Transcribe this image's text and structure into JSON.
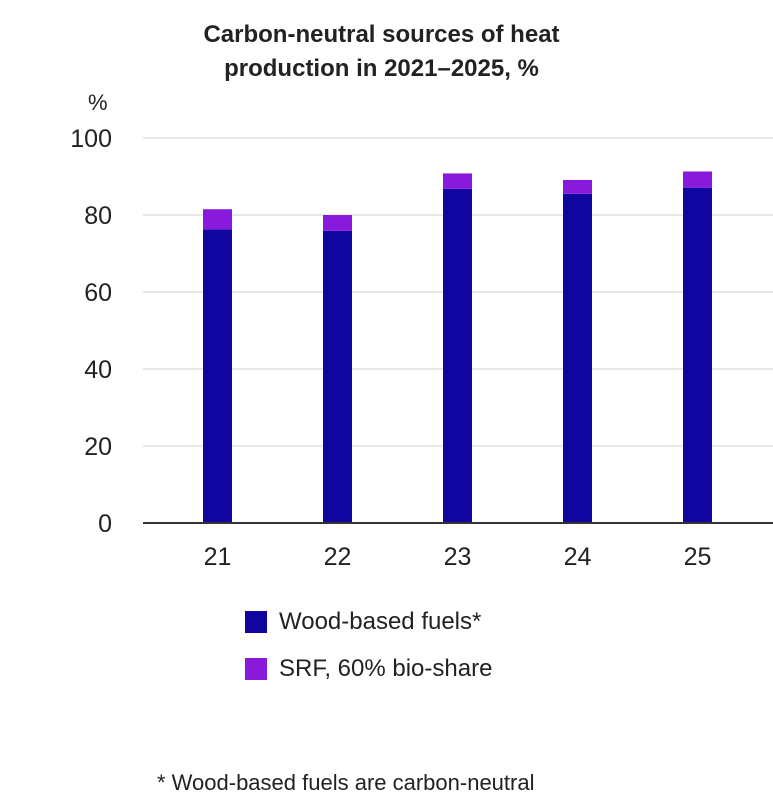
{
  "chart_data": {
    "type": "bar",
    "stacked": true,
    "title": [
      "Carbon-neutral sources of heat",
      "production in 2021–2025, %"
    ],
    "ylabel": "%",
    "xlabel": "",
    "ylim": [
      0,
      100
    ],
    "yticks": [
      0,
      20,
      40,
      60,
      80,
      100
    ],
    "grid": true,
    "categories": [
      "21",
      "22",
      "23",
      "24",
      "25"
    ],
    "series": [
      {
        "name": "Wood-based fuels*",
        "color": "#10069F",
        "values": [
          76.3,
          75.9,
          86.8,
          85.5,
          87.1
        ]
      },
      {
        "name": "SRF, 60% bio-share",
        "color": "#8A1ADB",
        "values": [
          5.2,
          4.1,
          4.0,
          3.6,
          4.2
        ]
      }
    ],
    "legend_position": "bottom",
    "footnote": "* Wood-based fuels are carbon-neutral"
  }
}
